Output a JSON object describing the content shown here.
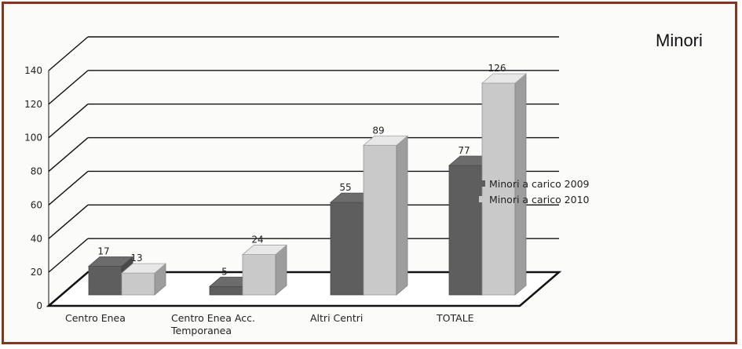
{
  "chart_data": {
    "type": "bar",
    "title": "Minori",
    "categories": [
      "Centro Enea",
      "Centro Enea Acc. Temporanea",
      "Altri Centri",
      "TOTALE"
    ],
    "category_lines": [
      [
        "Centro Enea"
      ],
      [
        "Centro Enea Acc.",
        "Temporanea"
      ],
      [
        "Altri Centri"
      ],
      [
        "TOTALE"
      ]
    ],
    "series": [
      {
        "name": "Minori a carico 2009",
        "values": [
          17,
          5,
          55,
          77
        ],
        "color": "#5e5e5e"
      },
      {
        "name": "Minori a carico 2010",
        "values": [
          13,
          24,
          89,
          126
        ],
        "color": "#c9c9c9"
      }
    ],
    "ylim": [
      0,
      140
    ],
    "yticks": [
      0,
      20,
      40,
      60,
      80,
      100,
      120,
      140
    ],
    "grid": true,
    "legend_position": "right",
    "style": "3d-bar"
  }
}
